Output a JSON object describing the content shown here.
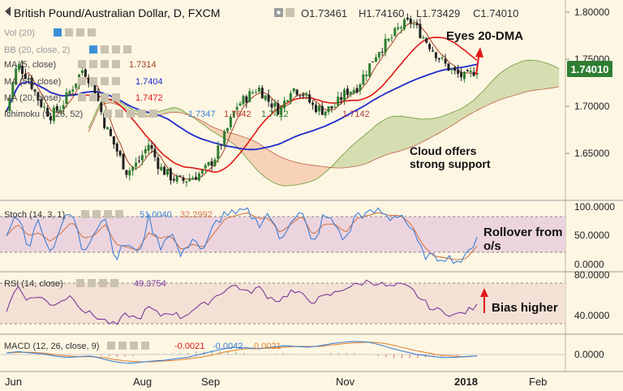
{
  "header": {
    "title": "British Pound/Australian Dollar, D, FXCM",
    "ohlc": [
      {
        "k": "O",
        "v": "1.73461"
      },
      {
        "k": "H",
        "v": "1.74160"
      },
      {
        "k": "L",
        "v": "1.73429"
      },
      {
        "k": "C",
        "v": "1.74010"
      }
    ]
  },
  "price_badge": "1.74010",
  "legend": {
    "vol": "Vol (20)",
    "bb": "BB (20, close, 2)",
    "ma5": {
      "label": "MA (5, close)",
      "value": "1.7314"
    },
    "ma50": {
      "label": "MA (50, close)",
      "value": "1.7404"
    },
    "ma20": {
      "label": "MA (20, close)",
      "value": "1.7472"
    },
    "ichimoku": {
      "label": "Ichimoku (9, 26, 52)",
      "values": [
        "1.7347",
        "1.7642",
        "1.7412",
        "1.7142"
      ]
    }
  },
  "annotations": {
    "eyes": "Eyes 20-DMA",
    "cloud_line1": "Cloud offers",
    "cloud_line2": "strong support",
    "rollover_line1": "Rollover from",
    "rollover_line2": "o/s",
    "bias": "Bias higher"
  },
  "stoch": {
    "label": "Stoch (14, 3, 1)",
    "k": "51.0040",
    "d": "32.2992",
    "axis": [
      "100.0000",
      "50.0000",
      "0.0000"
    ]
  },
  "rsi": {
    "label": "RSI (14, close)",
    "value": "49.3754",
    "axis": [
      "80.0000",
      "40.0000"
    ]
  },
  "macd": {
    "label": "MACD (12, 26, close, 9)",
    "values": [
      "-0.0021",
      "-0.0042",
      "0.0021"
    ],
    "axis": [
      "0.0000"
    ]
  },
  "x_axis": [
    "Jun",
    "Aug",
    "Sep",
    "Nov",
    "2018",
    "Feb"
  ],
  "colors": {
    "up": "#2f7d32",
    "down": "#222222",
    "ma5": "#a04020",
    "ma20": "#e01818",
    "ma50": "#1f2bcc",
    "cloud_bull": "#cfd9a8",
    "cloud_bear": "#f6cbb0",
    "stoch_k": "#3d7fd6",
    "stoch_d": "#d0784a",
    "rsi": "#7a3a9a",
    "macd": "#3d7fd6",
    "signal": "#e08a3a",
    "badge": "#2f7d32"
  },
  "chart_data": {
    "type": "candlestick",
    "title": "British Pound/Australian Dollar, D, FXCM",
    "x_ticks": [
      "Jun",
      "Aug",
      "Sep",
      "Nov",
      "2018",
      "Feb"
    ],
    "y_ticks": [
      1.65,
      1.7,
      1.75,
      1.8
    ],
    "ylim": [
      1.6,
      1.81
    ],
    "close_path": [
      1.695,
      1.745,
      1.73,
      1.705,
      1.69,
      1.7,
      1.72,
      1.74,
      1.72,
      1.68,
      1.655,
      1.63,
      1.64,
      1.66,
      1.635,
      1.625,
      1.62,
      1.625,
      1.63,
      1.645,
      1.67,
      1.7,
      1.71,
      1.72,
      1.705,
      1.695,
      1.72,
      1.715,
      1.7,
      1.695,
      1.7,
      1.715,
      1.72,
      1.74,
      1.76,
      1.77,
      1.785,
      1.79,
      1.775,
      1.76,
      1.745,
      1.735,
      1.73,
      1.74
    ],
    "stoch_k_path": [
      50,
      90,
      30,
      80,
      20,
      70,
      90,
      20,
      60,
      85,
      10,
      40,
      15,
      80,
      30,
      60,
      10,
      50,
      20,
      70,
      90,
      85,
      95,
      70,
      90,
      40,
      80,
      90,
      30,
      85,
      70,
      40,
      90,
      85,
      95,
      80,
      90,
      60,
      20,
      10,
      15,
      5,
      10,
      51
    ],
    "stoch_d_path": [
      50,
      70,
      50,
      55,
      40,
      55,
      75,
      45,
      50,
      70,
      35,
      30,
      25,
      55,
      45,
      50,
      25,
      35,
      30,
      55,
      80,
      85,
      90,
      80,
      80,
      55,
      70,
      85,
      50,
      70,
      70,
      55,
      80,
      85,
      90,
      85,
      85,
      70,
      35,
      15,
      12,
      8,
      10,
      32
    ],
    "rsi_path": [
      45,
      70,
      55,
      60,
      50,
      55,
      60,
      45,
      40,
      35,
      30,
      42,
      36,
      48,
      40,
      44,
      38,
      46,
      50,
      58,
      66,
      70,
      62,
      68,
      58,
      55,
      64,
      60,
      54,
      58,
      62,
      68,
      70,
      74,
      72,
      68,
      70,
      66,
      55,
      46,
      44,
      40,
      44,
      49
    ],
    "macd_path": [
      0.002,
      0.004,
      0.002,
      0.001,
      -0.002,
      -0.004,
      -0.003,
      -0.002,
      -0.006,
      -0.01,
      -0.012,
      -0.011,
      -0.009,
      -0.008,
      -0.006,
      -0.004,
      0.0,
      0.004,
      0.008,
      0.01,
      0.009,
      0.008,
      0.01,
      0.012,
      0.011,
      0.01,
      0.012,
      0.015,
      0.017,
      0.018,
      0.017,
      0.013,
      0.008,
      0.004,
      0.0,
      -0.002,
      -0.004,
      -0.004,
      -0.003,
      -0.002
    ],
    "signal_path": [
      0.002,
      0.003,
      0.003,
      0.002,
      0.0,
      -0.002,
      -0.003,
      -0.003,
      -0.004,
      -0.007,
      -0.009,
      -0.01,
      -0.01,
      -0.009,
      -0.008,
      -0.006,
      -0.004,
      -0.001,
      0.003,
      0.006,
      0.008,
      0.008,
      0.009,
      0.01,
      0.011,
      0.011,
      0.011,
      0.013,
      0.015,
      0.016,
      0.017,
      0.016,
      0.013,
      0.009,
      0.005,
      0.002,
      -0.001,
      -0.002,
      -0.003,
      -0.002
    ]
  }
}
